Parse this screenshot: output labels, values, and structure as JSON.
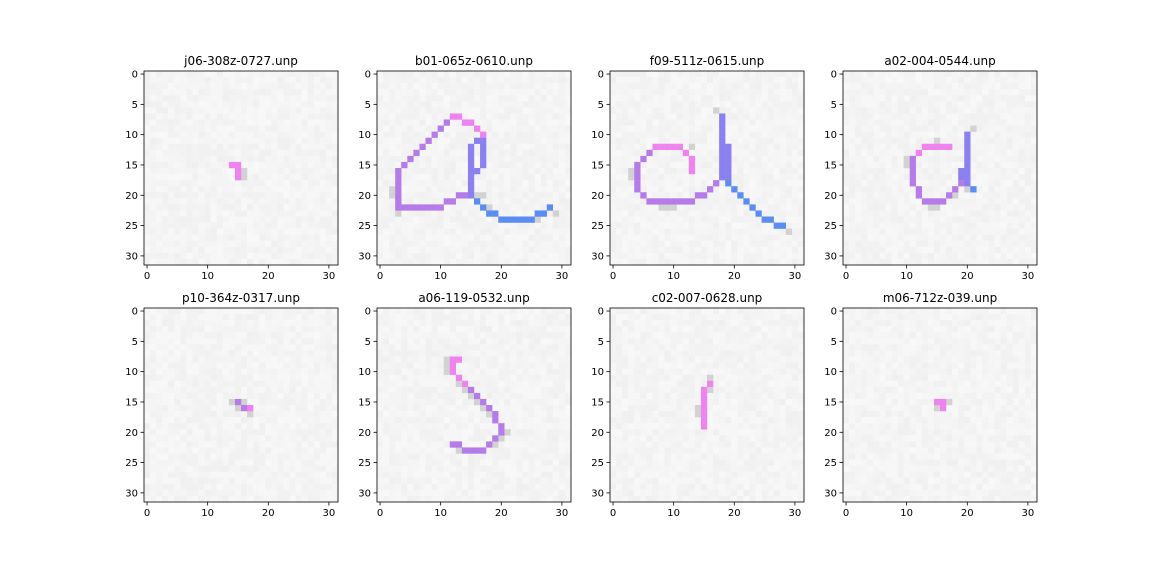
{
  "chart_data": [
    {
      "type": "heatmap",
      "title": "j06-308z-0727.unp",
      "xlim": [
        -0.5,
        31.5
      ],
      "ylim": [
        31.5,
        -0.5
      ],
      "xticks": [
        0,
        10,
        20,
        30
      ],
      "yticks": [
        0,
        5,
        10,
        15,
        20,
        25,
        30
      ],
      "strokes": [
        {
          "color": "#ee82ee",
          "cells": [
            [
              14,
              15
            ],
            [
              15,
              15
            ],
            [
              15,
              16
            ],
            [
              15,
              17
            ]
          ]
        }
      ],
      "shadow": [
        [
          16,
          16
        ],
        [
          16,
          17
        ]
      ]
    },
    {
      "type": "heatmap",
      "title": "b01-065z-0610.unp",
      "xlim": [
        -0.5,
        31.5
      ],
      "ylim": [
        31.5,
        -0.5
      ],
      "xticks": [
        0,
        10,
        20,
        30
      ],
      "yticks": [
        0,
        5,
        10,
        15,
        20,
        25,
        30
      ],
      "strokes": [
        {
          "color": "#ee82ee",
          "cells": [
            [
              12,
              7
            ],
            [
              13,
              7
            ],
            [
              14,
              8
            ],
            [
              15,
              8
            ],
            [
              16,
              9
            ],
            [
              17,
              10
            ]
          ]
        },
        {
          "color": "#b57be8",
          "cells": [
            [
              11,
              8
            ],
            [
              10,
              9
            ],
            [
              9,
              10
            ],
            [
              8,
              11
            ],
            [
              7,
              12
            ],
            [
              6,
              13
            ],
            [
              5,
              14
            ],
            [
              4,
              15
            ],
            [
              3,
              16
            ],
            [
              3,
              17
            ],
            [
              3,
              18
            ],
            [
              3,
              19
            ],
            [
              3,
              20
            ],
            [
              3,
              21
            ],
            [
              3,
              22
            ],
            [
              4,
              22
            ],
            [
              5,
              22
            ],
            [
              6,
              22
            ],
            [
              7,
              22
            ],
            [
              8,
              22
            ],
            [
              9,
              22
            ],
            [
              10,
              22
            ],
            [
              11,
              21
            ],
            [
              12,
              21
            ],
            [
              13,
              20
            ],
            [
              14,
              20
            ]
          ]
        },
        {
          "color": "#8a80ef",
          "cells": [
            [
              17,
              11
            ],
            [
              17,
              12
            ],
            [
              17,
              13
            ],
            [
              17,
              14
            ],
            [
              17,
              15
            ],
            [
              16,
              16
            ],
            [
              15,
              17
            ],
            [
              15,
              18
            ],
            [
              15,
              19
            ],
            [
              15,
              20
            ],
            [
              16,
              11
            ],
            [
              15,
              12
            ],
            [
              15,
              13
            ],
            [
              15,
              14
            ],
            [
              15,
              15
            ],
            [
              15,
              16
            ]
          ]
        },
        {
          "color": "#5a8cf2",
          "cells": [
            [
              16,
              21
            ],
            [
              17,
              22
            ],
            [
              18,
              23
            ],
            [
              19,
              23
            ],
            [
              20,
              24
            ],
            [
              21,
              24
            ],
            [
              22,
              24
            ],
            [
              23,
              24
            ],
            [
              24,
              24
            ],
            [
              25,
              24
            ],
            [
              26,
              23
            ],
            [
              27,
              23
            ],
            [
              28,
              22
            ]
          ]
        }
      ],
      "shadow": [
        [
          2,
          19
        ],
        [
          2,
          20
        ],
        [
          16,
          20
        ],
        [
          17,
          20
        ],
        [
          18,
          22
        ],
        [
          26,
          24
        ],
        [
          29,
          23
        ],
        [
          3,
          23
        ]
      ]
    },
    {
      "type": "heatmap",
      "title": "f09-511z-0615.unp",
      "xlim": [
        -0.5,
        31.5
      ],
      "ylim": [
        31.5,
        -0.5
      ],
      "xticks": [
        0,
        10,
        20,
        30
      ],
      "yticks": [
        0,
        5,
        10,
        15,
        20,
        25,
        30
      ],
      "strokes": [
        {
          "color": "#ee82ee",
          "cells": [
            [
              7,
              12
            ],
            [
              8,
              12
            ],
            [
              9,
              12
            ],
            [
              10,
              12
            ],
            [
              11,
              12
            ],
            [
              12,
              13
            ],
            [
              13,
              14
            ],
            [
              13,
              15
            ],
            [
              13,
              16
            ]
          ]
        },
        {
          "color": "#b57be8",
          "cells": [
            [
              6,
              13
            ],
            [
              5,
              14
            ],
            [
              4,
              15
            ],
            [
              4,
              16
            ],
            [
              4,
              17
            ],
            [
              4,
              18
            ],
            [
              4,
              19
            ],
            [
              5,
              20
            ],
            [
              6,
              21
            ],
            [
              7,
              21
            ],
            [
              8,
              21
            ],
            [
              9,
              21
            ],
            [
              10,
              21
            ],
            [
              11,
              21
            ],
            [
              12,
              21
            ],
            [
              13,
              21
            ],
            [
              14,
              20
            ],
            [
              15,
              20
            ],
            [
              16,
              19
            ],
            [
              17,
              18
            ]
          ]
        },
        {
          "color": "#8a80ef",
          "cells": [
            [
              18,
              7
            ],
            [
              18,
              8
            ],
            [
              18,
              9
            ],
            [
              18,
              10
            ],
            [
              18,
              11
            ],
            [
              18,
              12
            ],
            [
              18,
              13
            ],
            [
              18,
              14
            ],
            [
              18,
              15
            ],
            [
              18,
              16
            ],
            [
              18,
              17
            ],
            [
              19,
              12
            ],
            [
              19,
              13
            ],
            [
              19,
              14
            ],
            [
              19,
              15
            ],
            [
              19,
              16
            ],
            [
              19,
              17
            ]
          ]
        },
        {
          "color": "#5a8cf2",
          "cells": [
            [
              19,
              18
            ],
            [
              20,
              19
            ],
            [
              21,
              20
            ],
            [
              22,
              21
            ],
            [
              23,
              22
            ],
            [
              24,
              23
            ],
            [
              25,
              24
            ],
            [
              26,
              24
            ],
            [
              27,
              25
            ],
            [
              28,
              25
            ]
          ]
        }
      ],
      "shadow": [
        [
          17,
          6
        ],
        [
          3,
          16
        ],
        [
          3,
          17
        ],
        [
          8,
          22
        ],
        [
          9,
          22
        ],
        [
          10,
          22
        ],
        [
          29,
          26
        ],
        [
          13,
          12
        ]
      ]
    },
    {
      "type": "heatmap",
      "title": "a02-004-0544.unp",
      "xlim": [
        -0.5,
        31.5
      ],
      "ylim": [
        31.5,
        -0.5
      ],
      "xticks": [
        0,
        10,
        20,
        30
      ],
      "yticks": [
        0,
        5,
        10,
        15,
        20,
        25,
        30
      ],
      "strokes": [
        {
          "color": "#ee82ee",
          "cells": [
            [
              13,
              12
            ],
            [
              14,
              12
            ],
            [
              15,
              12
            ],
            [
              16,
              12
            ],
            [
              17,
              12
            ],
            [
              12,
              13
            ]
          ]
        },
        {
          "color": "#b57be8",
          "cells": [
            [
              11,
              14
            ],
            [
              11,
              15
            ],
            [
              11,
              16
            ],
            [
              11,
              17
            ],
            [
              11,
              18
            ],
            [
              12,
              19
            ],
            [
              12,
              20
            ],
            [
              13,
              21
            ],
            [
              14,
              21
            ],
            [
              15,
              21
            ],
            [
              16,
              21
            ],
            [
              17,
              20
            ],
            [
              18,
              19
            ],
            [
              19,
              18
            ]
          ]
        },
        {
          "color": "#8a80ef",
          "cells": [
            [
              20,
              10
            ],
            [
              20,
              11
            ],
            [
              20,
              12
            ],
            [
              20,
              13
            ],
            [
              20,
              14
            ],
            [
              20,
              15
            ],
            [
              20,
              16
            ],
            [
              20,
              17
            ],
            [
              20,
              18
            ],
            [
              19,
              16
            ],
            [
              19,
              17
            ]
          ]
        },
        {
          "color": "#5a8cf2",
          "cells": [
            [
              21,
              19
            ]
          ]
        }
      ],
      "shadow": [
        [
          15,
          11
        ],
        [
          10,
          14
        ],
        [
          10,
          15
        ],
        [
          14,
          22
        ],
        [
          15,
          22
        ],
        [
          21,
          9
        ],
        [
          20,
          19
        ],
        [
          18,
          20
        ]
      ]
    },
    {
      "type": "heatmap",
      "title": "p10-364z-0317.unp",
      "xlim": [
        -0.5,
        31.5
      ],
      "ylim": [
        31.5,
        -0.5
      ],
      "xticks": [
        0,
        10,
        20,
        30
      ],
      "yticks": [
        0,
        5,
        10,
        15,
        20,
        25,
        30
      ],
      "strokes": [
        {
          "color": "#ee82ee",
          "cells": [
            [
              17,
              16
            ]
          ]
        },
        {
          "color": "#b57be8",
          "cells": [
            [
              15,
              15
            ],
            [
              16,
              16
            ]
          ]
        }
      ],
      "shadow": [
        [
          14,
          15
        ],
        [
          15,
          16
        ],
        [
          17,
          17
        ],
        [
          16,
          15
        ]
      ]
    },
    {
      "type": "heatmap",
      "title": "a06-119-0532.unp",
      "xlim": [
        -0.5,
        31.5
      ],
      "ylim": [
        31.5,
        -0.5
      ],
      "xticks": [
        0,
        10,
        20,
        30
      ],
      "yticks": [
        0,
        5,
        10,
        15,
        20,
        25,
        30
      ],
      "strokes": [
        {
          "color": "#ee82ee",
          "cells": [
            [
              12,
              8
            ],
            [
              13,
              8
            ],
            [
              12,
              9
            ],
            [
              12,
              10
            ],
            [
              13,
              11
            ],
            [
              14,
              12
            ]
          ]
        },
        {
          "color": "#b57be8",
          "cells": [
            [
              15,
              13
            ],
            [
              16,
              14
            ],
            [
              17,
              15
            ],
            [
              18,
              16
            ],
            [
              19,
              17
            ],
            [
              19,
              18
            ],
            [
              20,
              19
            ],
            [
              20,
              20
            ],
            [
              19,
              21
            ],
            [
              18,
              22
            ],
            [
              17,
              23
            ],
            [
              16,
              23
            ],
            [
              15,
              23
            ],
            [
              14,
              23
            ],
            [
              13,
              22
            ],
            [
              12,
              22
            ]
          ]
        }
      ],
      "shadow": [
        [
          11,
          9
        ],
        [
          11,
          10
        ],
        [
          13,
          12
        ],
        [
          14,
          13
        ],
        [
          15,
          14
        ],
        [
          16,
          15
        ],
        [
          17,
          16
        ],
        [
          18,
          17
        ],
        [
          21,
          20
        ],
        [
          20,
          21
        ],
        [
          13,
          23
        ],
        [
          19,
          22
        ],
        [
          11,
          8
        ]
      ]
    },
    {
      "type": "heatmap",
      "title": "c02-007-0628.unp",
      "xlim": [
        -0.5,
        31.5
      ],
      "ylim": [
        31.5,
        -0.5
      ],
      "xticks": [
        0,
        10,
        20,
        30
      ],
      "yticks": [
        0,
        5,
        10,
        15,
        20,
        25,
        30
      ],
      "strokes": [
        {
          "color": "#ee82ee",
          "cells": [
            [
              16,
              12
            ],
            [
              15,
              13
            ],
            [
              15,
              14
            ],
            [
              15,
              15
            ],
            [
              15,
              16
            ],
            [
              15,
              17
            ],
            [
              15,
              18
            ],
            [
              15,
              19
            ]
          ]
        }
      ],
      "shadow": [
        [
          16,
          13
        ],
        [
          14,
          16
        ],
        [
          14,
          17
        ],
        [
          16,
          11
        ]
      ]
    },
    {
      "type": "heatmap",
      "title": "m06-712z-039.unp",
      "xlim": [
        -0.5,
        31.5
      ],
      "ylim": [
        31.5,
        -0.5
      ],
      "xticks": [
        0,
        10,
        20,
        30
      ],
      "yticks": [
        0,
        5,
        10,
        15,
        20,
        25,
        30
      ],
      "strokes": [
        {
          "color": "#ee82ee",
          "cells": [
            [
              15,
              15
            ],
            [
              16,
              15
            ],
            [
              16,
              16
            ]
          ]
        }
      ],
      "shadow": [
        [
          15,
          16
        ],
        [
          17,
          15
        ]
      ]
    }
  ]
}
